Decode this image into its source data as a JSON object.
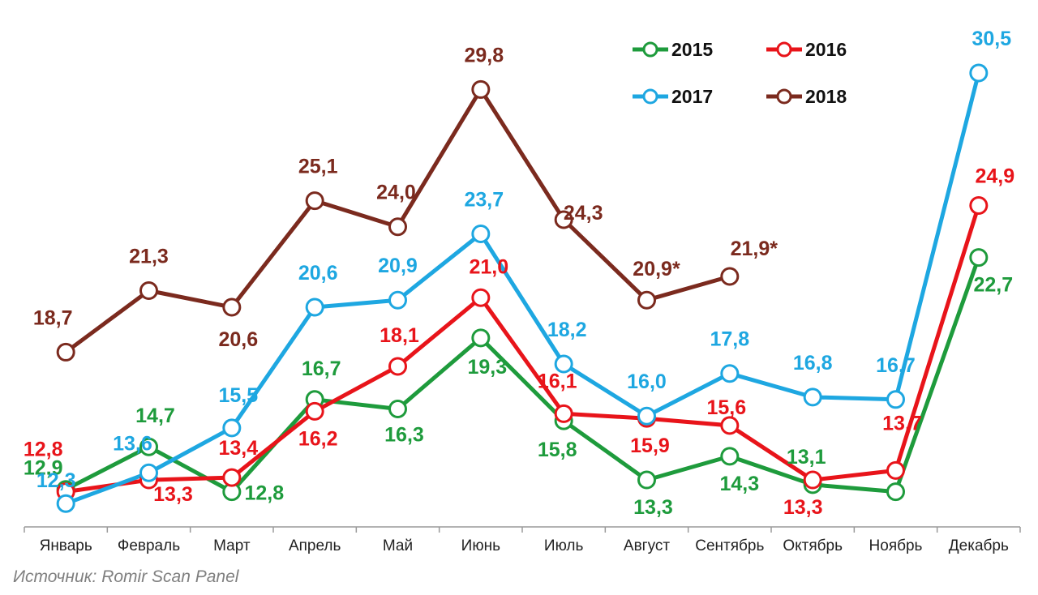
{
  "chart_data": {
    "type": "line",
    "title": "",
    "xlabel": "",
    "ylabel": "",
    "ylim": [
      10,
      32
    ],
    "grid": false,
    "legend_position": "top-right",
    "categories": [
      "Январь",
      "Февраль",
      "Март",
      "Апрель",
      "Май",
      "Июнь",
      "Июль",
      "Август",
      "Сентябрь",
      "Октябрь",
      "Ноябрь",
      "Декабрь"
    ],
    "series": [
      {
        "name": "2015",
        "color": "#1e9b3c",
        "values": [
          12.9,
          14.7,
          12.8,
          16.7,
          16.3,
          19.3,
          15.8,
          13.3,
          14.3,
          13.1,
          12.8,
          22.7
        ],
        "labels": [
          "12,9",
          "14,7",
          "12,8",
          "16,7",
          "16,3",
          "19,3",
          "15,8",
          "13,3",
          "14,3",
          "13,1",
          "",
          "22,7"
        ]
      },
      {
        "name": "2016",
        "color": "#e8141a",
        "values": [
          12.8,
          13.3,
          13.4,
          16.2,
          18.1,
          21.0,
          16.1,
          15.9,
          15.6,
          13.3,
          13.7,
          24.9
        ],
        "labels": [
          "12,8",
          "13,3",
          "13,4",
          "16,2",
          "18,1",
          "21,0",
          "16,1",
          "15,9",
          "15,6",
          "13,3",
          "13,7",
          "24,9"
        ]
      },
      {
        "name": "2017",
        "color": "#1ea7e1",
        "values": [
          12.3,
          13.6,
          15.5,
          20.6,
          20.9,
          23.7,
          18.2,
          16.0,
          17.8,
          16.8,
          16.7,
          30.5
        ],
        "labels": [
          "12,3",
          "13,6",
          "15,5",
          "20,6",
          "20,9",
          "23,7",
          "18,2",
          "16,0",
          "17,8",
          "16,8",
          "16,7",
          "30,5"
        ]
      },
      {
        "name": "2018",
        "color": "#7b2a1e",
        "values": [
          18.7,
          21.3,
          20.6,
          25.1,
          24.0,
          29.8,
          24.3,
          20.9,
          21.9,
          null,
          null,
          null
        ],
        "labels": [
          "18,7",
          "21,3",
          "20,6",
          "25,1",
          "24,0",
          "29,8",
          "24,3",
          "20,9*",
          "21,9*",
          "",
          "",
          ""
        ]
      }
    ]
  },
  "source_note": "Источник: Romir Scan Panel"
}
